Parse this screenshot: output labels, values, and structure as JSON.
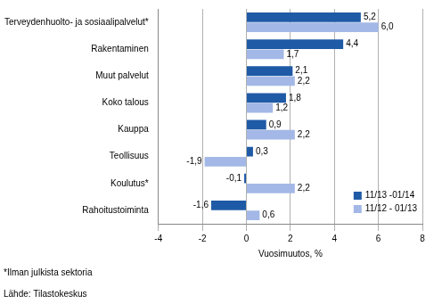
{
  "chart_data": {
    "type": "bar",
    "orientation": "horizontal",
    "categories": [
      "Terveydenhuolto- ja sosiaalipalvelut*",
      "Rakentaminen",
      "Muut palvelut",
      "Koko talous",
      "Kauppa",
      "Teollisuus",
      "Koulutus*",
      "Rahoitustoiminta"
    ],
    "series": [
      {
        "name": "11/13 -01/14",
        "color": "#1f5aa6",
        "values": [
          5.2,
          4.4,
          2.1,
          1.8,
          0.9,
          0.3,
          -0.1,
          -1.6
        ],
        "value_labels": [
          "5,2",
          "4,4",
          "2,1",
          "1,8",
          "0,9",
          "0,3",
          "-0,1",
          "-1,6"
        ]
      },
      {
        "name": "11/12 - 01/13",
        "color": "#a3b8e6",
        "values": [
          6.0,
          1.7,
          2.2,
          1.2,
          2.2,
          -1.9,
          2.2,
          0.6
        ],
        "value_labels": [
          "6,0",
          "1,7",
          "2,2",
          "1,2",
          "2,2",
          "-1,9",
          "2,2",
          "0,6"
        ]
      }
    ],
    "x_label": "Vuosimuutos, %",
    "xlim": [
      -4,
      8
    ],
    "xticks": [
      -4,
      -2,
      0,
      2,
      4,
      6,
      8
    ],
    "grid": true,
    "legend": "lower right",
    "data_labels": true,
    "annotations": [
      "*Ilman julkista sektoria",
      "Lähde: Tilastokeskus"
    ]
  }
}
